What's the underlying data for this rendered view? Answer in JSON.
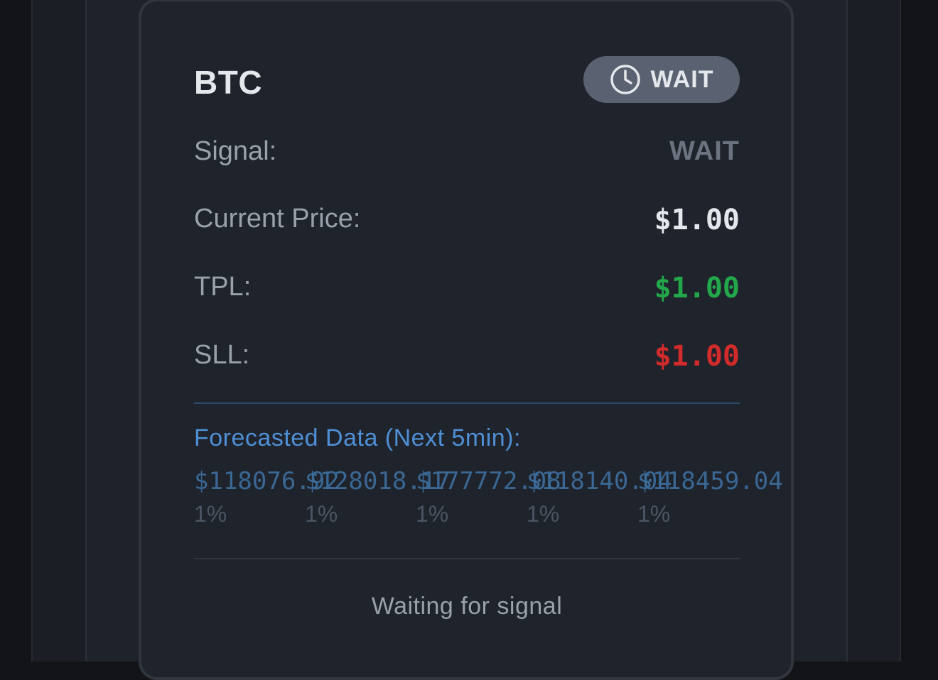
{
  "card": {
    "asset": "BTC",
    "status_badge": {
      "label": "WAIT",
      "icon": "clock-icon",
      "color": "#5a6170"
    },
    "rows": [
      {
        "label": "Signal:",
        "value": "WAIT",
        "color": "#6b7280"
      },
      {
        "label": "Current Price:",
        "value": "$1.00",
        "color": "#e4e7eb"
      },
      {
        "label": "TPL:",
        "value": "$1.00",
        "color": "#22a84a"
      },
      {
        "label": "SLL:",
        "value": "$1.00",
        "color": "#d22b2b"
      }
    ],
    "forecast": {
      "title": "Forecasted Data (Next 5min):",
      "items": [
        {
          "price": "$118076.92",
          "pct": "1%"
        },
        {
          "price": "$128018.17",
          "pct": "1%"
        },
        {
          "price": "$177772.08",
          "pct": "1%"
        },
        {
          "price": "$118140.04",
          "pct": "1%"
        },
        {
          "price": "$118459.04",
          "pct": "1%"
        }
      ]
    },
    "footer": "Waiting for signal"
  }
}
